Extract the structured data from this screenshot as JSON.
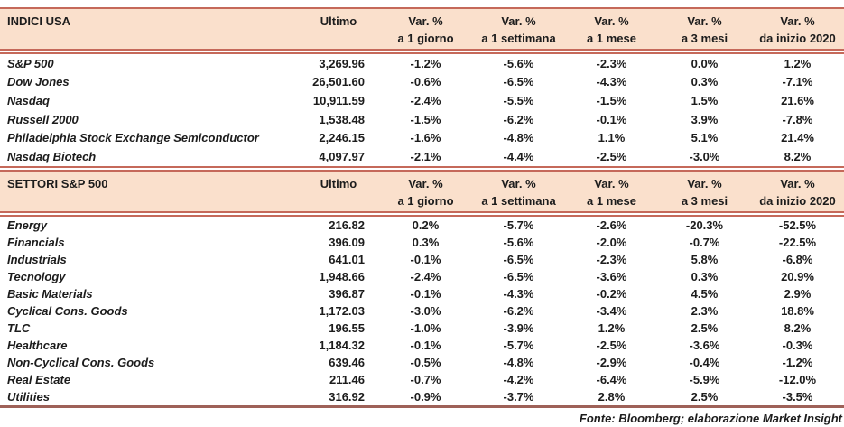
{
  "colors": {
    "line": "#C5695A",
    "bottom_line": "#9E6158",
    "header_bg": "#FAE0CC",
    "text": "#1C1C1C"
  },
  "table": {
    "columns": [
      {
        "l1": "Ultimo",
        "l2": ""
      },
      {
        "l1": "Var. %",
        "l2": "a 1 giorno"
      },
      {
        "l1": "Var. %",
        "l2": "a 1 settimana"
      },
      {
        "l1": "Var. %",
        "l2": "a 1 mese"
      },
      {
        "l1": "Var. %",
        "l2": "a 3 mesi"
      },
      {
        "l1": "Var. %",
        "l2": "da inizio 2020"
      }
    ],
    "sections": [
      {
        "title": "INDICI USA",
        "rows": [
          {
            "label": "S&P 500",
            "ultimo": "3,269.96",
            "values": [
              "-1.2%",
              "-5.6%",
              "-2.3%",
              "0.0%",
              "1.2%"
            ]
          },
          {
            "label": "Dow Jones",
            "ultimo": "26,501.60",
            "values": [
              "-0.6%",
              "-6.5%",
              "-4.3%",
              "0.3%",
              "-7.1%"
            ]
          },
          {
            "label": "Nasdaq",
            "ultimo": "10,911.59",
            "values": [
              "-2.4%",
              "-5.5%",
              "-1.5%",
              "1.5%",
              "21.6%"
            ]
          },
          {
            "label": "Russell 2000",
            "ultimo": "1,538.48",
            "values": [
              "-1.5%",
              "-6.2%",
              "-0.1%",
              "3.9%",
              "-7.8%"
            ]
          },
          {
            "label": "Philadelphia Stock Exchange Semiconductor",
            "ultimo": "2,246.15",
            "values": [
              "-1.6%",
              "-4.8%",
              "1.1%",
              "5.1%",
              "21.4%"
            ]
          },
          {
            "label": "Nasdaq Biotech",
            "ultimo": "4,097.97",
            "values": [
              "-2.1%",
              "-4.4%",
              "-2.5%",
              "-3.0%",
              "8.2%"
            ]
          }
        ]
      },
      {
        "title": "SETTORI S&P 500",
        "rows": [
          {
            "label": "Energy",
            "ultimo": "216.82",
            "values": [
              "0.2%",
              "-5.7%",
              "-2.6%",
              "-20.3%",
              "-52.5%"
            ]
          },
          {
            "label": "Financials",
            "ultimo": "396.09",
            "values": [
              "0.3%",
              "-5.6%",
              "-2.0%",
              "-0.7%",
              "-22.5%"
            ]
          },
          {
            "label": "Industrials",
            "ultimo": "641.01",
            "values": [
              "-0.1%",
              "-6.5%",
              "-2.3%",
              "5.8%",
              "-6.8%"
            ]
          },
          {
            "label": "Tecnology",
            "ultimo": "1,948.66",
            "values": [
              "-2.4%",
              "-6.5%",
              "-3.6%",
              "0.3%",
              "20.9%"
            ]
          },
          {
            "label": "Basic Materials",
            "ultimo": "396.87",
            "values": [
              "-0.1%",
              "-4.3%",
              "-0.2%",
              "4.5%",
              "2.9%"
            ]
          },
          {
            "label": "Cyclical Cons. Goods",
            "ultimo": "1,172.03",
            "values": [
              "-3.0%",
              "-6.2%",
              "-3.4%",
              "2.3%",
              "18.8%"
            ]
          },
          {
            "label": "TLC",
            "ultimo": "196.55",
            "values": [
              "-1.0%",
              "-3.9%",
              "1.2%",
              "2.5%",
              "8.2%"
            ]
          },
          {
            "label": "Healthcare",
            "ultimo": "1,184.32",
            "values": [
              "-0.1%",
              "-5.7%",
              "-2.5%",
              "-3.6%",
              "-0.3%"
            ]
          },
          {
            "label": "Non-Cyclical Cons. Goods",
            "ultimo": "639.46",
            "values": [
              "-0.5%",
              "-4.8%",
              "-2.9%",
              "-0.4%",
              "-1.2%"
            ]
          },
          {
            "label": "Real Estate",
            "ultimo": "211.46",
            "values": [
              "-0.7%",
              "-4.2%",
              "-6.4%",
              "-5.9%",
              "-12.0%"
            ]
          },
          {
            "label": "Utilities",
            "ultimo": "316.92",
            "values": [
              "-0.9%",
              "-3.7%",
              "2.8%",
              "2.5%",
              "-3.5%"
            ]
          }
        ]
      }
    ],
    "footer": "Fonte: Bloomberg; elaborazione Market Insight"
  }
}
